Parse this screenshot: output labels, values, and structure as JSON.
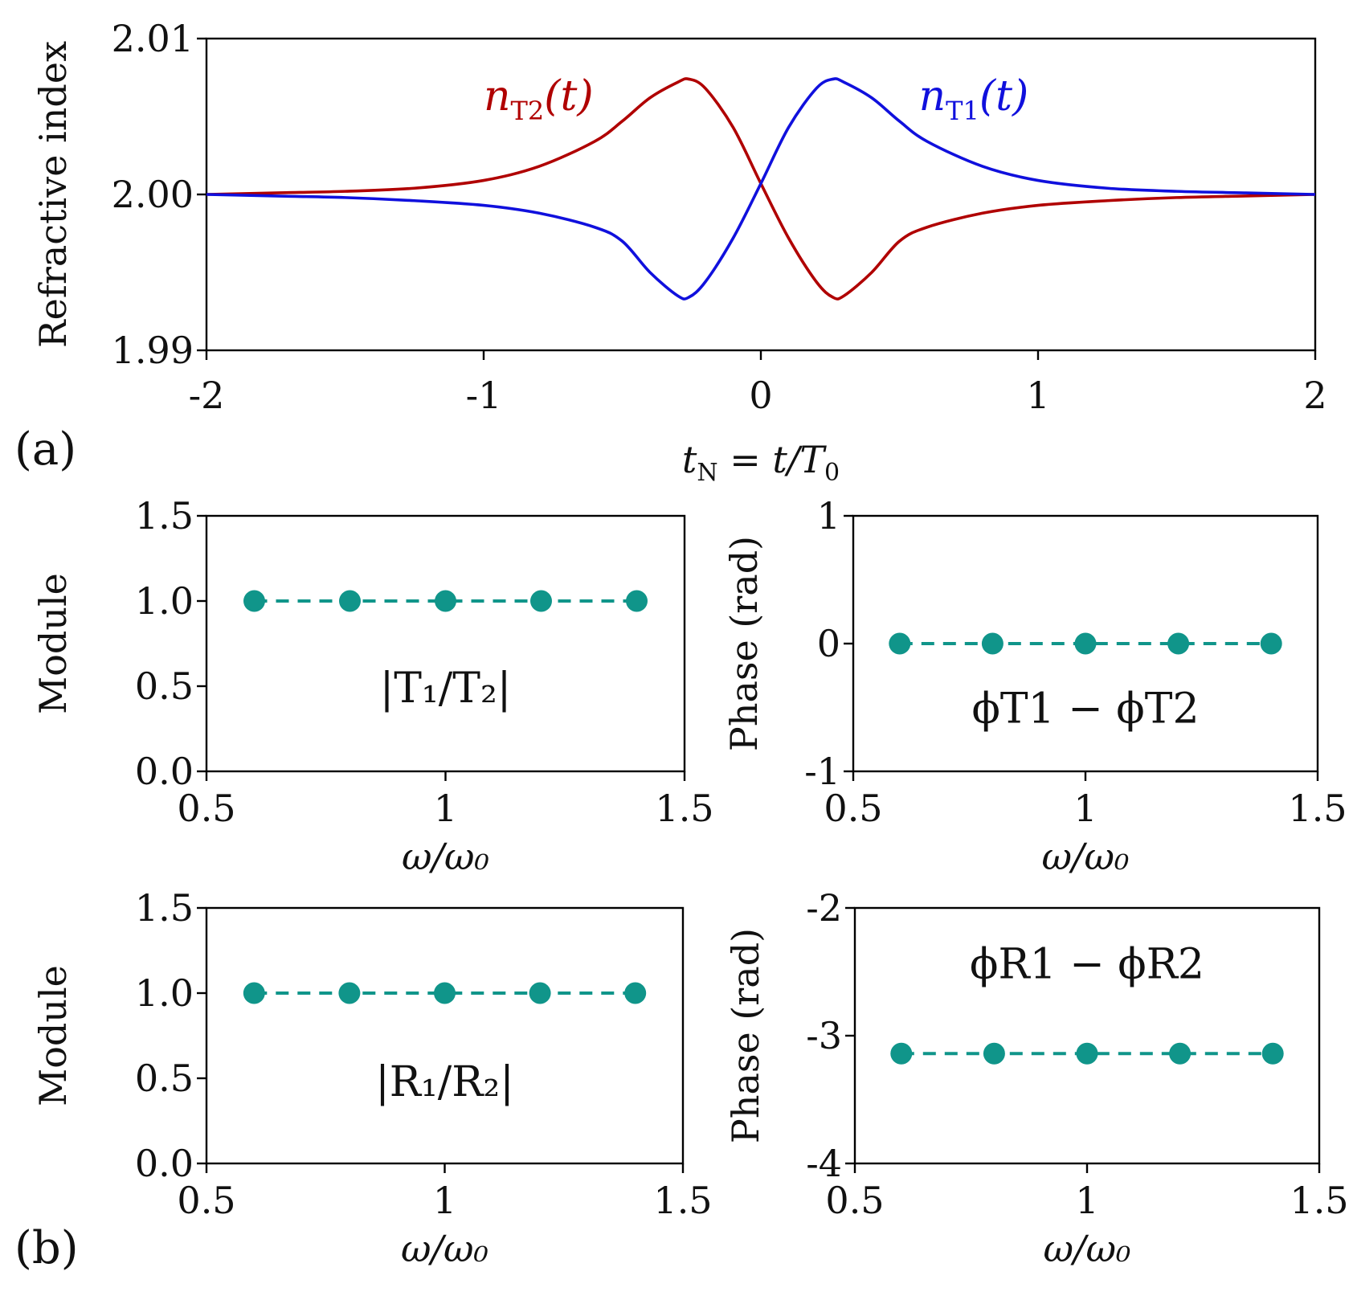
{
  "chart_data": [
    {
      "id": "a",
      "type": "line",
      "panel_label": "(a)",
      "ylabel": "Refractive index",
      "xlabel": {
        "main": "t",
        "sub": "N",
        "rest": " = t/T",
        "sub2": "0"
      },
      "xlim": [
        -2,
        2
      ],
      "ylim": [
        1.99,
        2.01
      ],
      "xticks": [
        -2,
        -1,
        0,
        1,
        2
      ],
      "xtick_labels": [
        "-2",
        "-1",
        "0",
        "1",
        "2"
      ],
      "yticks": [
        1.99,
        2.0,
        2.01
      ],
      "ytick_labels": [
        "1.99",
        "2.00",
        "2.01"
      ],
      "series": [
        {
          "name": "n_T2(t)",
          "label_main": "n",
          "label_sub": "T2",
          "label_rest": "(t)",
          "color": "#b00000",
          "x": [
            -2,
            -1.75,
            -1.5,
            -1.25,
            -1.0,
            -0.8,
            -0.6,
            -0.5,
            -0.4,
            -0.3,
            -0.26,
            -0.2,
            -0.1,
            0.0,
            0.1,
            0.2,
            0.26,
            0.3,
            0.4,
            0.5,
            0.6,
            0.8,
            1.0,
            1.25,
            1.5,
            1.75,
            2.0
          ],
          "y": [
            2.0,
            2.0001,
            2.0002,
            2.0004,
            2.0009,
            2.0018,
            2.0034,
            2.0047,
            2.0062,
            2.0072,
            2.0074,
            2.0068,
            2.0043,
            2.0007,
            1.9972,
            1.9944,
            1.9934,
            1.9935,
            1.995,
            1.997,
            1.9979,
            1.9988,
            1.9993,
            1.9996,
            1.9998,
            1.9999,
            2.0
          ]
        },
        {
          "name": "n_T1(t)",
          "label_main": "n",
          "label_sub": "T1",
          "label_rest": "(t)",
          "color": "#1010dd",
          "x": [
            -2,
            -1.75,
            -1.5,
            -1.25,
            -1.0,
            -0.8,
            -0.6,
            -0.5,
            -0.4,
            -0.3,
            -0.26,
            -0.2,
            -0.1,
            0.0,
            0.1,
            0.2,
            0.26,
            0.3,
            0.4,
            0.5,
            0.6,
            0.8,
            1.0,
            1.25,
            1.5,
            1.75,
            2.0
          ],
          "y": [
            2.0,
            1.9999,
            1.9998,
            1.9996,
            1.9993,
            1.9988,
            1.9979,
            1.997,
            1.995,
            1.9935,
            1.9934,
            1.9944,
            1.9972,
            2.0007,
            2.0043,
            2.0068,
            2.0074,
            2.0072,
            2.0062,
            2.0047,
            2.0034,
            2.0018,
            2.0009,
            2.0004,
            2.0002,
            2.0001,
            2.0
          ]
        }
      ]
    },
    {
      "id": "b1",
      "type": "scatter",
      "ylabel": "Module",
      "xlabel": "ω/ω₀",
      "xlim": [
        0.5,
        1.5
      ],
      "ylim": [
        0.0,
        1.5
      ],
      "xticks": [
        0.5,
        1.0,
        1.5
      ],
      "xtick_labels": [
        "0.5",
        "1",
        "1.5"
      ],
      "yticks": [
        0.0,
        0.5,
        1.0,
        1.5
      ],
      "ytick_labels": [
        "0.0",
        "0.5",
        "1.0",
        "1.5"
      ],
      "annotation": "|T₁/T₂|",
      "color": "#10958a",
      "x": [
        0.6,
        0.8,
        1.0,
        1.2,
        1.4
      ],
      "y": [
        1.0,
        1.0,
        1.0,
        1.0,
        1.0
      ]
    },
    {
      "id": "b2",
      "type": "scatter",
      "ylabel": "Phase (rad)",
      "xlabel": "ω/ω₀",
      "xlim": [
        0.5,
        1.5
      ],
      "ylim": [
        -1,
        1
      ],
      "xticks": [
        0.5,
        1.0,
        1.5
      ],
      "xtick_labels": [
        "0.5",
        "1",
        "1.5"
      ],
      "yticks": [
        -1,
        0,
        1
      ],
      "ytick_labels": [
        "-1",
        "0",
        "1"
      ],
      "annotation": "ϕT1 − ϕT2",
      "color": "#10958a",
      "x": [
        0.6,
        0.8,
        1.0,
        1.2,
        1.4
      ],
      "y": [
        0,
        0,
        0,
        0,
        0
      ]
    },
    {
      "id": "b3",
      "type": "scatter",
      "ylabel": "Module",
      "xlabel": "ω/ω₀",
      "xlim": [
        0.5,
        1.5
      ],
      "ylim": [
        0.0,
        1.5
      ],
      "xticks": [
        0.5,
        1.0,
        1.5
      ],
      "xtick_labels": [
        "0.5",
        "1",
        "1.5"
      ],
      "yticks": [
        0.0,
        0.5,
        1.0,
        1.5
      ],
      "ytick_labels": [
        "0.0",
        "0.5",
        "1.0",
        "1.5"
      ],
      "annotation": "|R₁/R₂|",
      "color": "#10958a",
      "x": [
        0.6,
        0.8,
        1.0,
        1.2,
        1.4
      ],
      "y": [
        1.0,
        1.0,
        1.0,
        1.0,
        1.0
      ]
    },
    {
      "id": "b4",
      "type": "scatter",
      "ylabel": "Phase (rad)",
      "xlabel": "ω/ω₀",
      "xlim": [
        0.5,
        1.5
      ],
      "ylim": [
        -4,
        -2
      ],
      "xticks": [
        0.5,
        1.0,
        1.5
      ],
      "xtick_labels": [
        "0.5",
        "1",
        "1.5"
      ],
      "yticks": [
        -4,
        -3,
        -2
      ],
      "ytick_labels": [
        "-4",
        "-3",
        "-2"
      ],
      "annotation": "ϕR1 − ϕR2",
      "color": "#10958a",
      "x": [
        0.6,
        0.8,
        1.0,
        1.2,
        1.4
      ],
      "y": [
        -3.14,
        -3.14,
        -3.14,
        -3.14,
        -3.14
      ]
    }
  ],
  "panel_label_b": "(b)"
}
